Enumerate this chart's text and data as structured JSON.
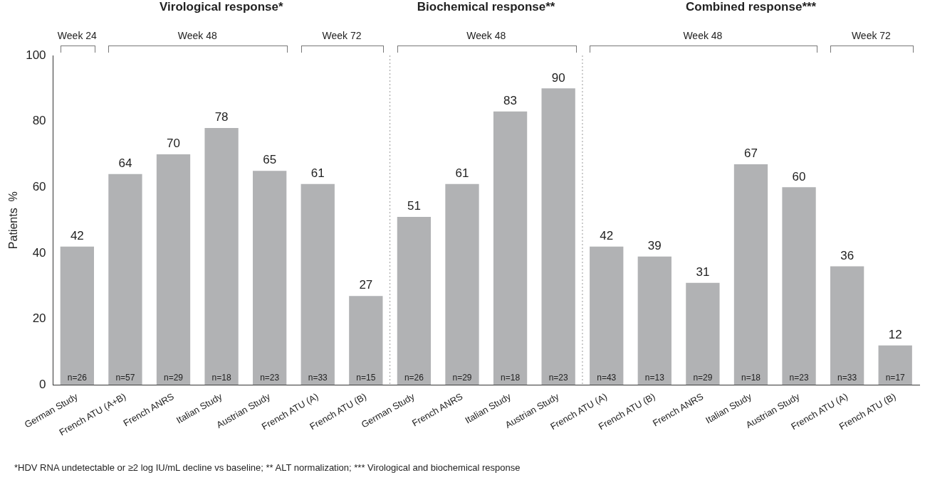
{
  "chart_data": {
    "type": "bar",
    "categories": [
      "German Study",
      "French ATU (A+B)",
      "French ANRS",
      "Italian Study",
      "Austrian Study",
      "French ATU (A)",
      "French ATU (B)",
      "German Study",
      "French ANRS",
      "Italian Study",
      "Austrian Study",
      "French ATU (A)",
      "French ATU (B)",
      "French ANRS",
      "Italian Study",
      "Austrian Study",
      "French ATU (A)",
      "French ATU (B)"
    ],
    "values": [
      42,
      64,
      70,
      78,
      65,
      61,
      27,
      51,
      61,
      83,
      90,
      42,
      39,
      31,
      67,
      60,
      36,
      12
    ],
    "color": "#b1b2b4",
    "ylabel": "Patients  %",
    "ylim": [
      0,
      100
    ],
    "yticks": [
      0,
      20,
      40,
      60,
      80,
      100
    ],
    "data_labels": true,
    "annotations": [
      "Virological response*",
      "Biochemical response**",
      "Combined response***",
      "Week 24",
      "Week 48",
      "Week 72",
      "Week 48",
      "Week 48",
      "Week 72",
      "n=26",
      "n=57",
      "n=29",
      "n=18",
      "n=23",
      "n=33",
      "n=15",
      "n=26",
      "n=29",
      "n=18",
      "n=23",
      "n=43",
      "n=13",
      "n=29",
      "n=18",
      "n=23",
      "n=33",
      "n=17",
      "*HDV RNA undetectable or ≥2 log IU/mL decline vs baseline; ** ALT normalization; *** Virological and biochemical response"
    ]
  }
}
